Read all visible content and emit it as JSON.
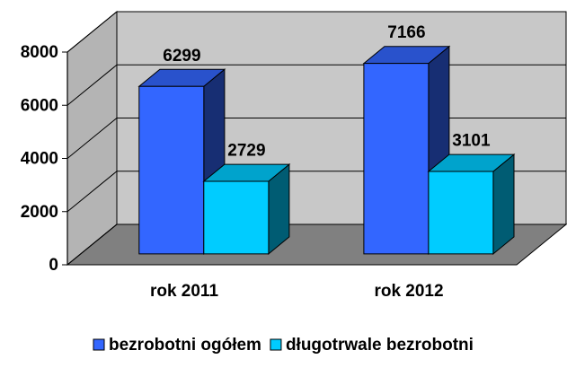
{
  "chart_data": {
    "type": "bar3d",
    "categories": [
      "rok 2011",
      "rok 2012"
    ],
    "series": [
      {
        "name": "bezrobotni ogółem",
        "color": "#3366ff",
        "values": [
          6299,
          7166
        ]
      },
      {
        "name": "długotrwale bezrobotni",
        "color": "#00ccff",
        "values": [
          2729,
          3101
        ]
      }
    ],
    "ylim": [
      0,
      8000
    ],
    "yticks": [
      0,
      2000,
      4000,
      6000,
      8000
    ],
    "grid": true,
    "legend": "bottom"
  }
}
